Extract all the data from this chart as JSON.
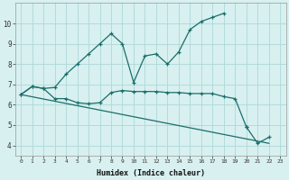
{
  "xlabel": "Humidex (Indice chaleur)",
  "bg_color": "#d8f0f0",
  "grid_color": "#aed8d8",
  "line_color": "#1a6e6a",
  "x_values": [
    0,
    1,
    2,
    3,
    4,
    5,
    6,
    7,
    8,
    9,
    10,
    11,
    12,
    13,
    14,
    15,
    16,
    17,
    18,
    19,
    20,
    21,
    22,
    23
  ],
  "line1_y": [
    6.5,
    6.9,
    6.8,
    6.85,
    7.5,
    8.0,
    8.5,
    9.0,
    9.5,
    9.0,
    7.1,
    8.4,
    8.5,
    8.0,
    8.6,
    9.7,
    10.1,
    10.3,
    10.5,
    null,
    null,
    null,
    null,
    null
  ],
  "line2_y": [
    6.5,
    6.9,
    6.8,
    6.3,
    6.3,
    6.1,
    6.05,
    6.1,
    6.6,
    6.7,
    6.65,
    6.65,
    6.65,
    6.6,
    6.6,
    6.55,
    6.55,
    6.55,
    6.4,
    6.3,
    4.9,
    null,
    null,
    null
  ],
  "line3_y": [
    6.5,
    null,
    null,
    null,
    null,
    null,
    null,
    null,
    null,
    null,
    null,
    null,
    null,
    null,
    null,
    null,
    null,
    null,
    null,
    null,
    4.9,
    4.1,
    4.4,
    null
  ],
  "line4_straight": [
    [
      0,
      6.5
    ],
    [
      22,
      4.1
    ]
  ],
  "xlim": [
    -0.5,
    23.5
  ],
  "ylim": [
    3.5,
    11.0
  ],
  "yticks": [
    4,
    5,
    6,
    7,
    8,
    9,
    10
  ],
  "xticks": [
    0,
    1,
    2,
    3,
    4,
    5,
    6,
    7,
    8,
    9,
    10,
    11,
    12,
    13,
    14,
    15,
    16,
    17,
    18,
    19,
    20,
    21,
    22,
    23
  ],
  "figsize": [
    3.2,
    2.0
  ],
  "dpi": 100
}
